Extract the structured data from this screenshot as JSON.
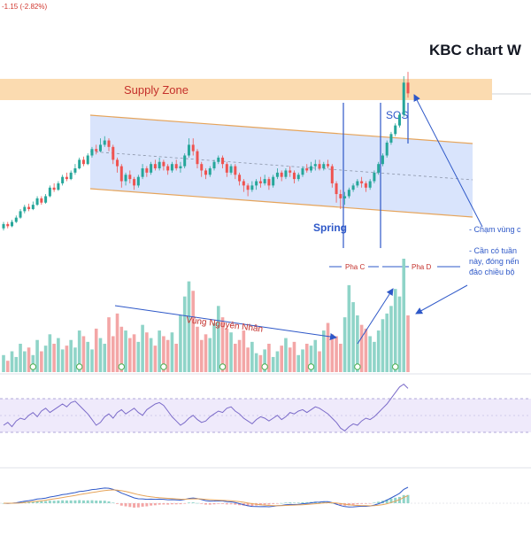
{
  "header": {
    "change_text": "-1.15 (-2.82%)"
  },
  "chart_data": {
    "type": "candlestick",
    "title": "KBC chart W",
    "annotations": {
      "supply_zone": "Supply Zone",
      "sos": "SOS",
      "spring": "Spring",
      "phase_c": "Pha C",
      "phase_d": "Pha D",
      "cause_zone": "Vùng Nguyên Nhân",
      "note1": "- Chạm vùng c",
      "note2_line1": "- Cần có tuần",
      "note2_line2": "này, đóng nến",
      "note2_line3": "đảo chiều bộ"
    },
    "price_bars": [
      {
        "o": 6,
        "c": 10,
        "h": 12,
        "l": 4
      },
      {
        "o": 10,
        "c": 8,
        "h": 12,
        "l": 6
      },
      {
        "o": 8,
        "c": 12,
        "h": 14,
        "l": 7
      },
      {
        "o": 12,
        "c": 16,
        "h": 18,
        "l": 11
      },
      {
        "o": 16,
        "c": 22,
        "h": 24,
        "l": 15
      },
      {
        "o": 22,
        "c": 26,
        "h": 28,
        "l": 20
      },
      {
        "o": 26,
        "c": 24,
        "h": 29,
        "l": 22
      },
      {
        "o": 24,
        "c": 28,
        "h": 31,
        "l": 23
      },
      {
        "o": 28,
        "c": 34,
        "h": 36,
        "l": 27
      },
      {
        "o": 34,
        "c": 30,
        "h": 36,
        "l": 28
      },
      {
        "o": 30,
        "c": 36,
        "h": 38,
        "l": 29
      },
      {
        "o": 36,
        "c": 44,
        "h": 46,
        "l": 35
      },
      {
        "o": 44,
        "c": 42,
        "h": 48,
        "l": 40
      },
      {
        "o": 42,
        "c": 48,
        "h": 50,
        "l": 41
      },
      {
        "o": 48,
        "c": 54,
        "h": 56,
        "l": 46
      },
      {
        "o": 54,
        "c": 52,
        "h": 58,
        "l": 50
      },
      {
        "o": 52,
        "c": 58,
        "h": 60,
        "l": 51
      },
      {
        "o": 58,
        "c": 62,
        "h": 66,
        "l": 56
      },
      {
        "o": 62,
        "c": 70,
        "h": 72,
        "l": 61
      },
      {
        "o": 70,
        "c": 66,
        "h": 73,
        "l": 64
      },
      {
        "o": 66,
        "c": 74,
        "h": 76,
        "l": 65
      },
      {
        "o": 74,
        "c": 80,
        "h": 82,
        "l": 72
      },
      {
        "o": 80,
        "c": 78,
        "h": 84,
        "l": 75
      },
      {
        "o": 78,
        "c": 84,
        "h": 90,
        "l": 77
      },
      {
        "o": 84,
        "c": 88,
        "h": 92,
        "l": 82
      },
      {
        "o": 88,
        "c": 82,
        "h": 90,
        "l": 78
      },
      {
        "o": 82,
        "c": 70,
        "h": 84,
        "l": 66
      },
      {
        "o": 70,
        "c": 64,
        "h": 72,
        "l": 58
      },
      {
        "o": 64,
        "c": 50,
        "h": 66,
        "l": 44
      },
      {
        "o": 50,
        "c": 56,
        "h": 58,
        "l": 46
      },
      {
        "o": 56,
        "c": 52,
        "h": 60,
        "l": 48
      },
      {
        "o": 52,
        "c": 46,
        "h": 54,
        "l": 42
      },
      {
        "o": 46,
        "c": 54,
        "h": 56,
        "l": 44
      },
      {
        "o": 54,
        "c": 62,
        "h": 66,
        "l": 52
      },
      {
        "o": 62,
        "c": 58,
        "h": 64,
        "l": 54
      },
      {
        "o": 58,
        "c": 66,
        "h": 68,
        "l": 56
      },
      {
        "o": 66,
        "c": 62,
        "h": 70,
        "l": 60
      },
      {
        "o": 62,
        "c": 68,
        "h": 72,
        "l": 60
      },
      {
        "o": 68,
        "c": 64,
        "h": 70,
        "l": 60
      },
      {
        "o": 64,
        "c": 60,
        "h": 66,
        "l": 56
      },
      {
        "o": 60,
        "c": 66,
        "h": 68,
        "l": 58
      },
      {
        "o": 66,
        "c": 62,
        "h": 70,
        "l": 60
      },
      {
        "o": 62,
        "c": 64,
        "h": 68,
        "l": 58
      },
      {
        "o": 64,
        "c": 74,
        "h": 76,
        "l": 62
      },
      {
        "o": 74,
        "c": 84,
        "h": 90,
        "l": 72
      },
      {
        "o": 84,
        "c": 78,
        "h": 90,
        "l": 74
      },
      {
        "o": 78,
        "c": 66,
        "h": 80,
        "l": 62
      },
      {
        "o": 66,
        "c": 60,
        "h": 68,
        "l": 54
      },
      {
        "o": 60,
        "c": 56,
        "h": 62,
        "l": 52
      },
      {
        "o": 56,
        "c": 62,
        "h": 64,
        "l": 54
      },
      {
        "o": 62,
        "c": 68,
        "h": 70,
        "l": 60
      },
      {
        "o": 68,
        "c": 72,
        "h": 74,
        "l": 66
      },
      {
        "o": 72,
        "c": 66,
        "h": 74,
        "l": 62
      },
      {
        "o": 66,
        "c": 58,
        "h": 68,
        "l": 54
      },
      {
        "o": 58,
        "c": 64,
        "h": 66,
        "l": 56
      },
      {
        "o": 64,
        "c": 56,
        "h": 66,
        "l": 52
      },
      {
        "o": 56,
        "c": 50,
        "h": 58,
        "l": 46
      },
      {
        "o": 50,
        "c": 46,
        "h": 52,
        "l": 40
      },
      {
        "o": 46,
        "c": 42,
        "h": 48,
        "l": 36
      },
      {
        "o": 42,
        "c": 46,
        "h": 50,
        "l": 40
      },
      {
        "o": 46,
        "c": 50,
        "h": 52,
        "l": 42
      },
      {
        "o": 50,
        "c": 48,
        "h": 54,
        "l": 44
      },
      {
        "o": 48,
        "c": 52,
        "h": 56,
        "l": 46
      },
      {
        "o": 52,
        "c": 46,
        "h": 54,
        "l": 42
      },
      {
        "o": 46,
        "c": 54,
        "h": 56,
        "l": 44
      },
      {
        "o": 54,
        "c": 58,
        "h": 62,
        "l": 52
      },
      {
        "o": 58,
        "c": 54,
        "h": 60,
        "l": 50
      },
      {
        "o": 54,
        "c": 60,
        "h": 62,
        "l": 52
      },
      {
        "o": 60,
        "c": 58,
        "h": 64,
        "l": 54
      },
      {
        "o": 58,
        "c": 52,
        "h": 60,
        "l": 48
      },
      {
        "o": 52,
        "c": 56,
        "h": 58,
        "l": 50
      },
      {
        "o": 56,
        "c": 62,
        "h": 64,
        "l": 54
      },
      {
        "o": 62,
        "c": 60,
        "h": 66,
        "l": 58
      },
      {
        "o": 60,
        "c": 64,
        "h": 68,
        "l": 58
      },
      {
        "o": 64,
        "c": 66,
        "h": 70,
        "l": 60
      },
      {
        "o": 66,
        "c": 62,
        "h": 70,
        "l": 60
      },
      {
        "o": 62,
        "c": 66,
        "h": 68,
        "l": 60
      },
      {
        "o": 66,
        "c": 64,
        "h": 70,
        "l": 62
      },
      {
        "o": 64,
        "c": 48,
        "h": 66,
        "l": 44
      },
      {
        "o": 48,
        "c": 38,
        "h": 50,
        "l": 30
      },
      {
        "o": 38,
        "c": 34,
        "h": 42,
        "l": 24
      },
      {
        "o": 34,
        "c": 36,
        "h": 40,
        "l": 28
      },
      {
        "o": 36,
        "c": 42,
        "h": 44,
        "l": 34
      },
      {
        "o": 42,
        "c": 46,
        "h": 48,
        "l": 40
      },
      {
        "o": 46,
        "c": 50,
        "h": 52,
        "l": 44
      },
      {
        "o": 50,
        "c": 48,
        "h": 54,
        "l": 44
      },
      {
        "o": 48,
        "c": 44,
        "h": 50,
        "l": 40
      },
      {
        "o": 44,
        "c": 50,
        "h": 52,
        "l": 42
      },
      {
        "o": 50,
        "c": 58,
        "h": 60,
        "l": 48
      },
      {
        "o": 58,
        "c": 66,
        "h": 68,
        "l": 56
      },
      {
        "o": 66,
        "c": 74,
        "h": 76,
        "l": 64
      },
      {
        "o": 74,
        "c": 86,
        "h": 88,
        "l": 72
      },
      {
        "o": 86,
        "c": 94,
        "h": 96,
        "l": 84
      },
      {
        "o": 94,
        "c": 102,
        "h": 104,
        "l": 92
      },
      {
        "o": 102,
        "c": 112,
        "h": 114,
        "l": 100
      },
      {
        "o": 112,
        "c": 142,
        "h": 148,
        "l": 110
      },
      {
        "o": 142,
        "c": 132,
        "h": 152,
        "l": 128
      }
    ],
    "volume": [
      18,
      12,
      22,
      16,
      30,
      22,
      26,
      18,
      34,
      22,
      28,
      40,
      30,
      36,
      24,
      28,
      34,
      26,
      44,
      38,
      32,
      24,
      46,
      36,
      30,
      58,
      38,
      62,
      48,
      44,
      36,
      40,
      32,
      50,
      42,
      36,
      28,
      44,
      38,
      34,
      42,
      30,
      60,
      80,
      96,
      86,
      48,
      34,
      40,
      36,
      52,
      70,
      58,
      46,
      42,
      30,
      34,
      44,
      26,
      32,
      20,
      18,
      24,
      30,
      16,
      22,
      28,
      36,
      26,
      32,
      18,
      24,
      30,
      28,
      34,
      22,
      44,
      52,
      40,
      38,
      30,
      58,
      92,
      74,
      60,
      50,
      46,
      38,
      32,
      44,
      56,
      62,
      70,
      88,
      80,
      120,
      60
    ],
    "rsi": [
      40,
      44,
      38,
      46,
      50,
      48,
      54,
      58,
      52,
      60,
      64,
      58,
      62,
      66,
      70,
      66,
      72,
      74,
      68,
      62,
      56,
      48,
      40,
      44,
      52,
      56,
      50,
      58,
      62,
      56,
      60,
      64,
      58,
      54,
      62,
      66,
      70,
      72,
      68,
      60,
      52,
      46,
      40,
      44,
      50,
      54,
      48,
      44,
      46,
      52,
      56,
      60,
      58,
      64,
      66,
      60,
      56,
      50,
      46,
      42,
      48,
      52,
      50,
      46,
      50,
      54,
      48,
      52,
      58,
      56,
      60,
      62,
      58,
      62,
      66,
      64,
      60,
      56,
      50,
      44,
      36,
      32,
      38,
      42,
      40,
      46,
      50,
      48,
      52,
      58,
      64,
      70,
      78,
      86,
      94,
      98,
      92
    ]
  }
}
